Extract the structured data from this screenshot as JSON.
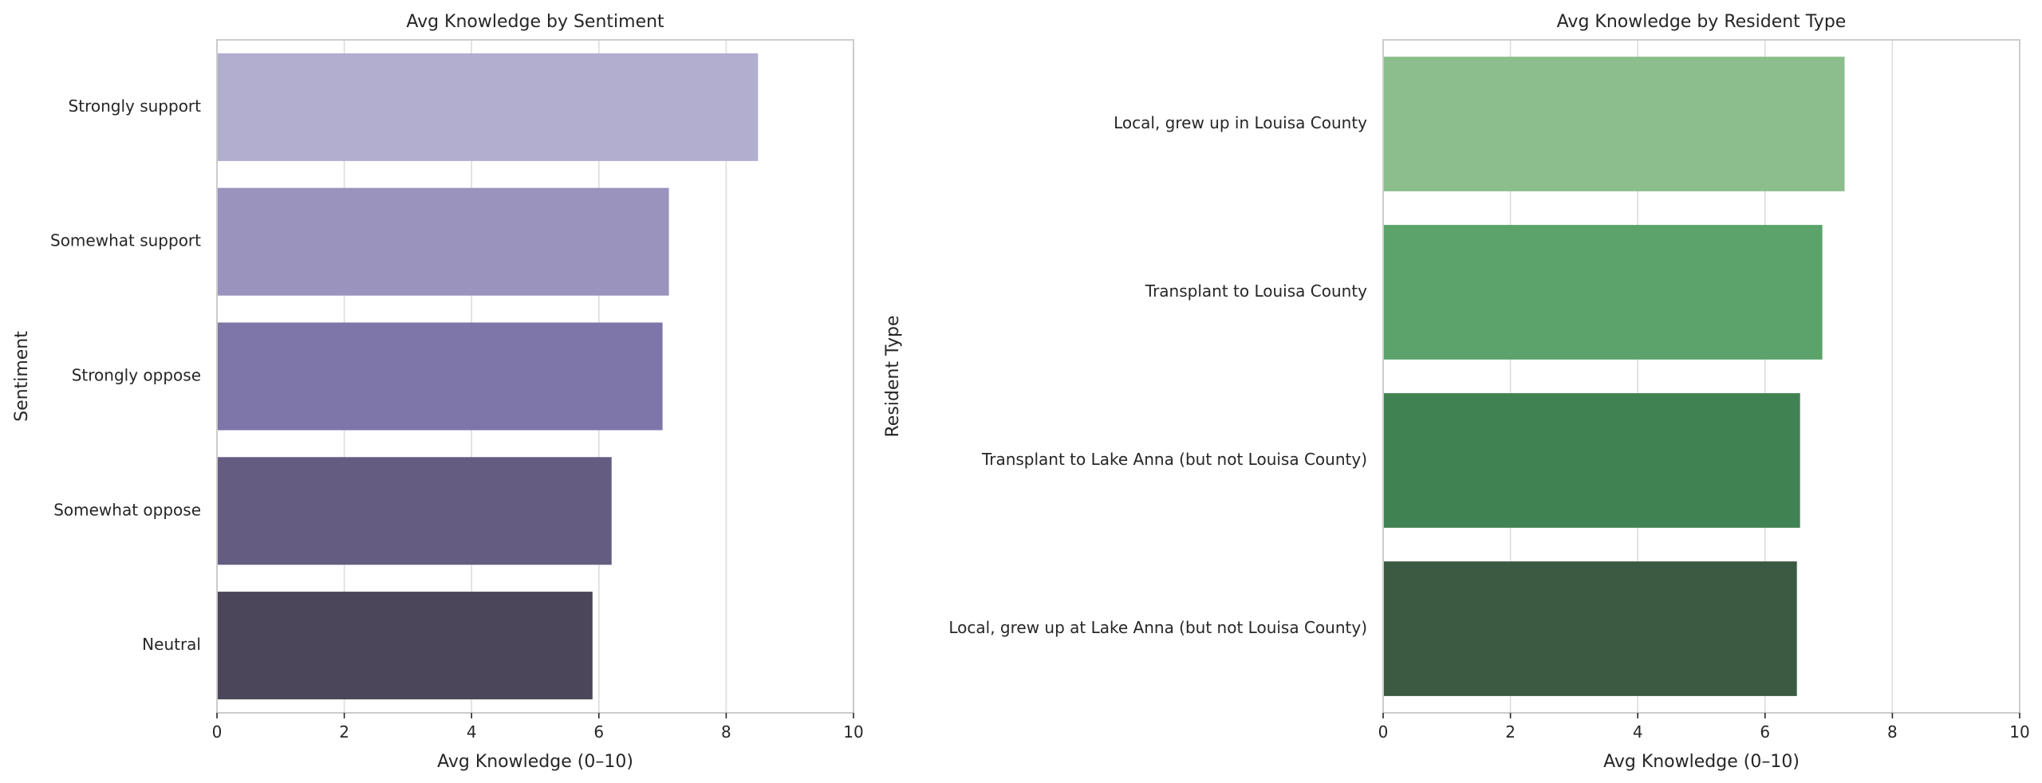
{
  "chart_data": [
    {
      "type": "bar",
      "orientation": "horizontal",
      "title": "Avg Knowledge by Sentiment",
      "xlabel": "Avg Knowledge (0–10)",
      "ylabel": "Sentiment",
      "xlim": [
        0,
        10
      ],
      "xticks": [
        0,
        2,
        4,
        6,
        8,
        10
      ],
      "grid": true,
      "categories": [
        "Strongly support",
        "Somewhat support",
        "Strongly oppose",
        "Somewhat oppose",
        "Neutral"
      ],
      "values": [
        8.5,
        7.1,
        7.0,
        6.2,
        5.9
      ],
      "colors": [
        "#b1aed0",
        "#9993bd",
        "#7e76a9",
        "#645d81",
        "#4b4659"
      ]
    },
    {
      "type": "bar",
      "orientation": "horizontal",
      "title": "Avg Knowledge by Resident Type",
      "xlabel": "Avg Knowledge (0–10)",
      "ylabel": "Resident Type",
      "xlim": [
        0,
        10
      ],
      "xticks": [
        0,
        2,
        4,
        6,
        8,
        10
      ],
      "grid": true,
      "categories": [
        "Local, grew up in Louisa County",
        "Transplant to Louisa County",
        "Transplant to Lake Anna (but not Louisa County)",
        "Local, grew up at Lake Anna (but not Louisa County)"
      ],
      "values": [
        7.25,
        6.9,
        6.55,
        6.5
      ],
      "colors": [
        "#8bbe8c",
        "#5ba36b",
        "#418252",
        "#3b5a42"
      ]
    }
  ]
}
